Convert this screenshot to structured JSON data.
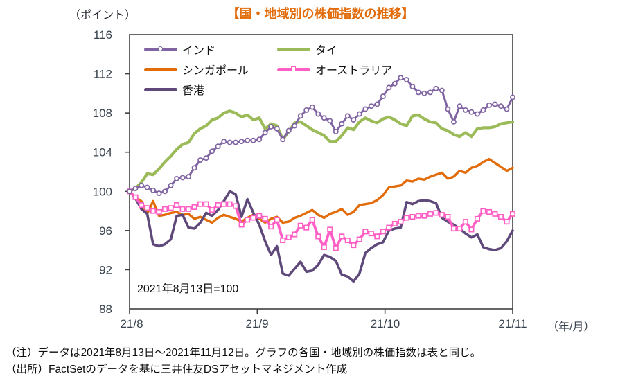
{
  "header": {
    "points_label": "（ポイント）",
    "title": "【国・地域別の株価指数の推移】",
    "title_color": "#E26B0A"
  },
  "notes": {
    "line1": "（注）データは2021年8月13日～2021年11月12日。グラフの各国・地域別の株価指数は表と同じ。",
    "line2": "（出所）FactSetのデータを基に三井住友DSアセットマネジメント作成"
  },
  "chart_data": {
    "type": "line",
    "title": "【国・地域別の株価指数の推移】",
    "ylabel": "（ポイント）",
    "base_note": "2021年8月13日=100",
    "ylim": [
      88,
      116
    ],
    "yticks": [
      88,
      92,
      96,
      100,
      104,
      108,
      112,
      116
    ],
    "xticks": [
      "21/8",
      "21/9",
      "21/10",
      "21/11"
    ],
    "x_axis_suffix": "（年/月）",
    "grid": false,
    "legend_position": "top-left-inside",
    "x": [
      "8/13",
      "8/16",
      "8/17",
      "8/18",
      "8/19",
      "8/20",
      "8/23",
      "8/24",
      "8/25",
      "8/26",
      "8/27",
      "8/30",
      "8/31",
      "9/1",
      "9/2",
      "9/3",
      "9/6",
      "9/7",
      "9/8",
      "9/9",
      "9/10",
      "9/13",
      "9/14",
      "9/15",
      "9/16",
      "9/17",
      "9/20",
      "9/21",
      "9/22",
      "9/23",
      "9/24",
      "9/27",
      "9/28",
      "9/29",
      "9/30",
      "10/1",
      "10/4",
      "10/5",
      "10/6",
      "10/7",
      "10/8",
      "10/11",
      "10/12",
      "10/13",
      "10/14",
      "10/15",
      "10/18",
      "10/19",
      "10/20",
      "10/21",
      "10/22",
      "10/25",
      "10/26",
      "10/27",
      "10/28",
      "10/29",
      "11/1",
      "11/2",
      "11/3",
      "11/4",
      "11/5",
      "11/8",
      "11/9",
      "11/10",
      "11/11",
      "11/12"
    ],
    "series": [
      {
        "name": "インド",
        "color": "#8064A2",
        "marker": "circle",
        "values": [
          100,
          100.3,
          100.6,
          100.4,
          100.1,
          99.8,
          100.0,
          100.6,
          101.3,
          101.4,
          101.5,
          102.4,
          103.2,
          103.4,
          104.1,
          104.6,
          105.1,
          105.0,
          105.0,
          105.1,
          105.2,
          105.2,
          105.3,
          106.0,
          106.6,
          106.4,
          105.3,
          106.2,
          106.7,
          107.7,
          108.3,
          108.6,
          107.9,
          107.5,
          107.2,
          106.1,
          106.9,
          107.7,
          107.3,
          107.9,
          108.4,
          108.7,
          108.9,
          109.7,
          110.6,
          111.0,
          111.6,
          111.4,
          110.7,
          110.1,
          110.0,
          110.1,
          110.5,
          110.3,
          108.4,
          107.1,
          108.7,
          108.3,
          108.1,
          107.9,
          108.3,
          108.8,
          108.9,
          108.7,
          108.4,
          109.6
        ]
      },
      {
        "name": "シンガポール",
        "color": "#E26C09",
        "marker": "none",
        "values": [
          100,
          99.4,
          99.0,
          97.7,
          99.0,
          97.5,
          97.6,
          97.8,
          97.9,
          97.6,
          97.7,
          97.2,
          97.4,
          97.1,
          96.8,
          97.3,
          97.6,
          97.4,
          97.2,
          96.9,
          97.3,
          97.6,
          97.2,
          96.8,
          97.2,
          97.4,
          96.8,
          96.9,
          97.3,
          97.5,
          97.8,
          98.1,
          97.6,
          97.3,
          97.7,
          97.9,
          98.2,
          97.6,
          97.9,
          98.6,
          98.7,
          98.8,
          99.1,
          99.6,
          100.4,
          100.5,
          100.6,
          101.1,
          101.0,
          101.3,
          101.2,
          101.5,
          101.7,
          101.9,
          101.3,
          101.5,
          102.1,
          101.9,
          102.4,
          102.6,
          103.0,
          103.3,
          102.9,
          102.5,
          102.1,
          102.4
        ]
      },
      {
        "name": "香港",
        "color": "#5F497A",
        "marker": "none",
        "values": [
          100,
          99.3,
          98.2,
          97.7,
          94.6,
          94.4,
          94.6,
          95.1,
          97.5,
          97.6,
          96.3,
          96.2,
          96.8,
          97.8,
          97.5,
          98.1,
          99.0,
          100.0,
          99.7,
          97.4,
          99.2,
          97.8,
          96.6,
          94.9,
          93.5,
          94.4,
          91.6,
          91.4,
          92.1,
          92.8,
          91.8,
          91.9,
          92.5,
          93.5,
          93.3,
          92.9,
          91.5,
          91.3,
          90.8,
          91.6,
          93.7,
          94.2,
          94.6,
          94.8,
          96.0,
          96.2,
          96.3,
          98.9,
          98.7,
          99.0,
          99.1,
          99.0,
          98.8,
          97.3,
          96.9,
          96.6,
          96.2,
          95.7,
          95.3,
          95.6,
          94.3,
          94.1,
          94.0,
          94.2,
          94.9,
          96.0
        ]
      },
      {
        "name": "タイ",
        "color": "#9BBB59",
        "marker": "none",
        "values": [
          100,
          100.3,
          100.9,
          101.8,
          101.7,
          102.3,
          103.0,
          103.6,
          104.3,
          104.8,
          105.0,
          105.9,
          106.4,
          106.7,
          107.3,
          107.5,
          108.0,
          108.2,
          108.0,
          107.6,
          107.8,
          107.3,
          107.5,
          106.4,
          106.9,
          106.7,
          105.3,
          106.1,
          107.0,
          107.1,
          106.7,
          106.3,
          106.0,
          105.7,
          105.1,
          105.1,
          105.7,
          106.5,
          106.3,
          107.1,
          107.5,
          107.2,
          107.0,
          107.4,
          107.6,
          107.3,
          106.9,
          106.7,
          107.7,
          107.8,
          107.4,
          107.1,
          107.0,
          106.4,
          106.2,
          105.8,
          105.6,
          106.0,
          105.6,
          106.4,
          106.5,
          106.5,
          106.6,
          106.9,
          107.0,
          107.1
        ]
      },
      {
        "name": "オーストラリア",
        "color": "#FF5EC4",
        "marker": "square",
        "values": [
          100,
          99.4,
          98.6,
          98.3,
          98.0,
          97.9,
          98.2,
          98.3,
          98.6,
          98.2,
          98.2,
          98.4,
          98.7,
          98.7,
          98.1,
          98.6,
          98.7,
          98.7,
          98.5,
          96.6,
          97.1,
          97.3,
          97.5,
          97.2,
          96.4,
          97.1,
          95.0,
          95.3,
          95.6,
          96.5,
          96.3,
          97.1,
          95.4,
          94.3,
          96.1,
          94.2,
          95.4,
          95.0,
          94.5,
          95.1,
          95.9,
          95.7,
          95.4,
          95.9,
          96.3,
          96.7,
          96.9,
          97.3,
          97.4,
          97.5,
          97.5,
          97.7,
          97.8,
          97.6,
          97.4,
          96.2,
          96.2,
          96.9,
          96.1,
          97.2,
          98.0,
          97.9,
          97.7,
          97.4,
          96.9,
          97.7
        ]
      }
    ]
  }
}
